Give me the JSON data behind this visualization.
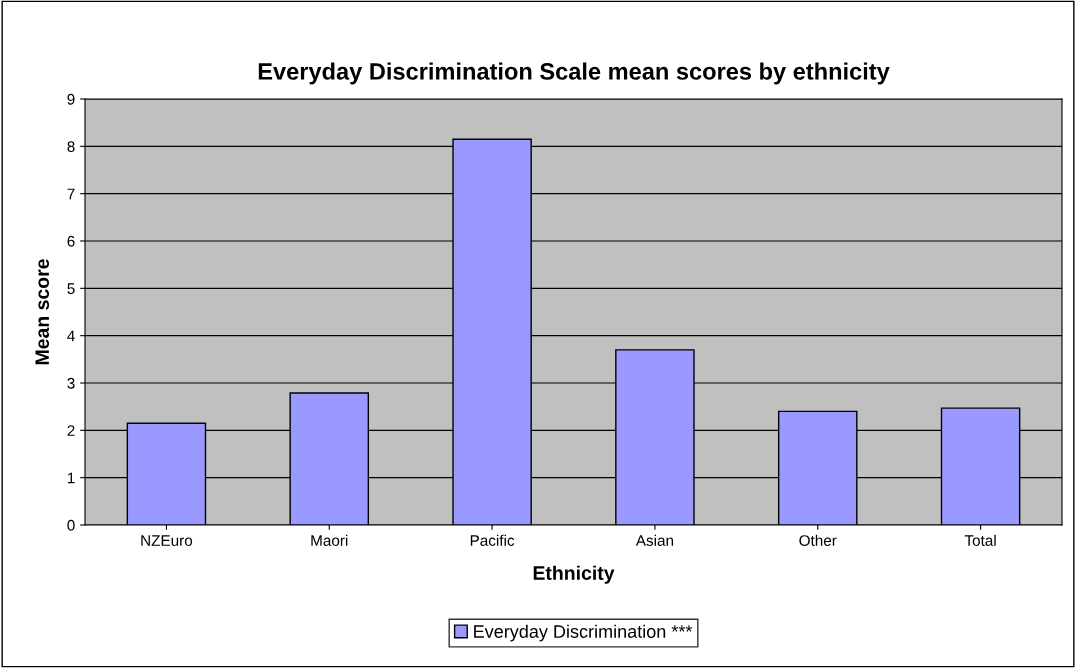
{
  "chart_data": {
    "type": "bar",
    "title": "Everyday Discrimination Scale mean scores by ethnicity",
    "xlabel": "Ethnicity",
    "ylabel": "Mean score",
    "categories": [
      "NZEuro",
      "Maori",
      "Pacific",
      "Asian",
      "Other",
      "Total"
    ],
    "series": [
      {
        "name": "Everyday Discrimination ***",
        "color": "#9999ff",
        "values": [
          2.15,
          2.79,
          8.15,
          3.7,
          2.4,
          2.47
        ]
      }
    ],
    "ylim": [
      0,
      9
    ],
    "yticks": [
      0,
      1,
      2,
      3,
      4,
      5,
      6,
      7,
      8,
      9
    ],
    "grid": "y",
    "legend": "bottom"
  }
}
